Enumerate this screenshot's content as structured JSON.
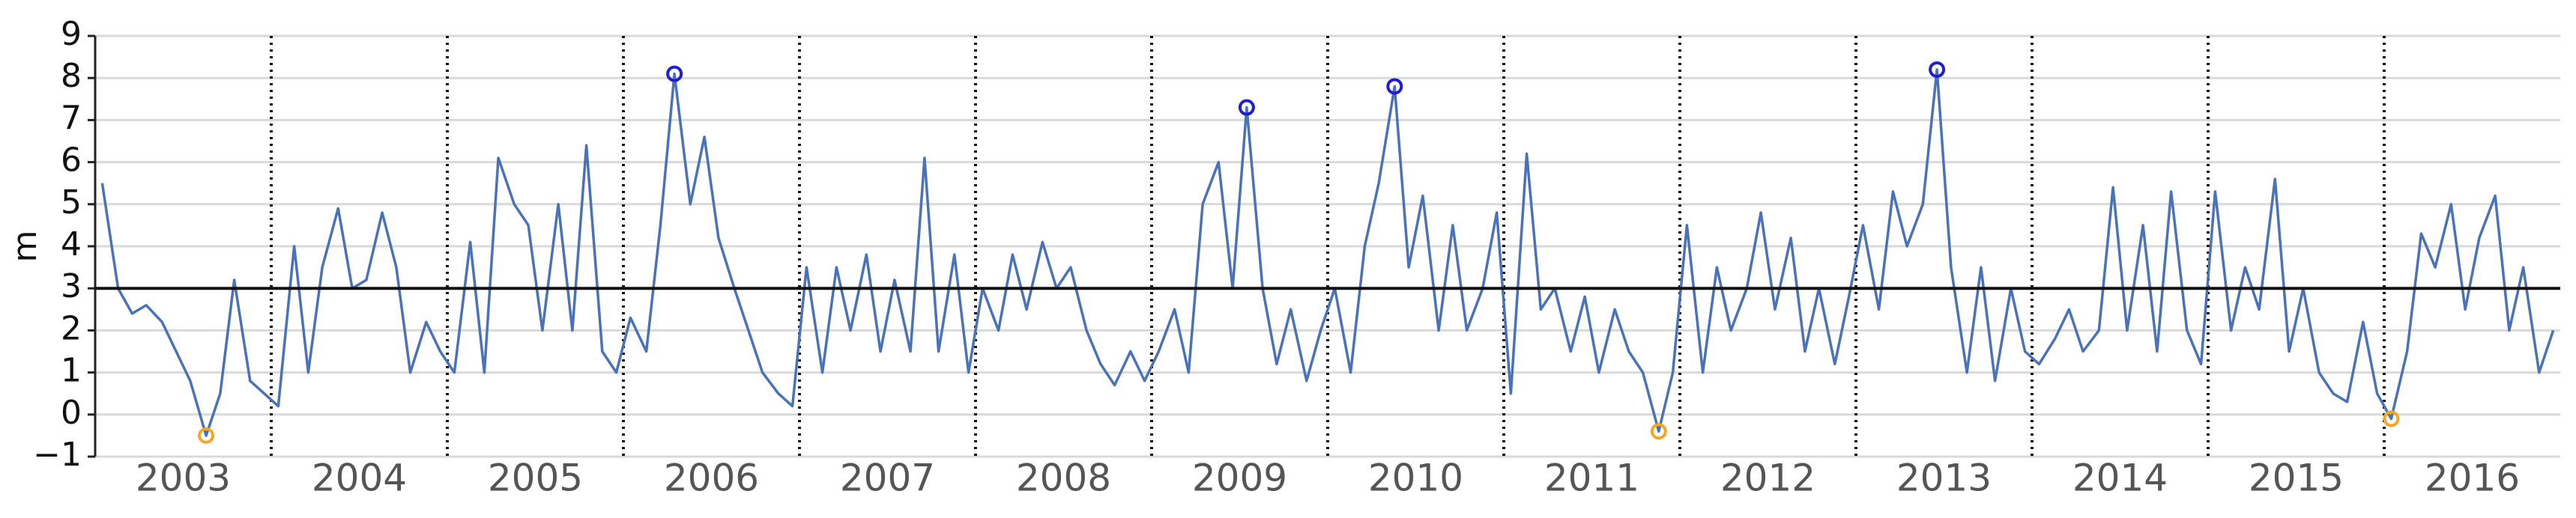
{
  "chart_data": {
    "type": "line",
    "y_label": "m",
    "x": [
      2003.04,
      2003.13,
      2003.21,
      2003.29,
      2003.38,
      2003.46,
      2003.54,
      2003.63,
      2003.71,
      2003.79,
      2003.88,
      2003.96,
      2004.04,
      2004.13,
      2004.21,
      2004.29,
      2004.38,
      2004.46,
      2004.54,
      2004.63,
      2004.71,
      2004.79,
      2004.88,
      2004.96,
      2005.04,
      2005.13,
      2005.21,
      2005.29,
      2005.38,
      2005.46,
      2005.54,
      2005.63,
      2005.71,
      2005.79,
      2005.88,
      2005.96,
      2006.04,
      2006.13,
      2006.21,
      2006.29,
      2006.38,
      2006.46,
      2006.54,
      2006.63,
      2006.71,
      2006.79,
      2006.88,
      2006.96,
      2007.04,
      2007.13,
      2007.21,
      2007.29,
      2007.38,
      2007.46,
      2007.54,
      2007.63,
      2007.71,
      2007.79,
      2007.88,
      2007.96,
      2008.04,
      2008.13,
      2008.21,
      2008.29,
      2008.38,
      2008.46,
      2008.54,
      2008.63,
      2008.71,
      2008.79,
      2008.88,
      2008.96,
      2009.04,
      2009.13,
      2009.21,
      2009.29,
      2009.38,
      2009.46,
      2009.54,
      2009.63,
      2009.71,
      2009.79,
      2009.88,
      2009.96,
      2010.04,
      2010.13,
      2010.21,
      2010.29,
      2010.38,
      2010.46,
      2010.54,
      2010.63,
      2010.71,
      2010.79,
      2010.88,
      2010.96,
      2011.04,
      2011.13,
      2011.21,
      2011.29,
      2011.38,
      2011.46,
      2011.54,
      2011.63,
      2011.71,
      2011.79,
      2011.88,
      2011.96,
      2012.04,
      2012.13,
      2012.21,
      2012.29,
      2012.38,
      2012.46,
      2012.54,
      2012.63,
      2012.71,
      2012.79,
      2012.88,
      2012.96,
      2013.04,
      2013.13,
      2013.21,
      2013.29,
      2013.38,
      2013.46,
      2013.54,
      2013.63,
      2013.71,
      2013.79,
      2013.88,
      2013.96,
      2014.04,
      2014.13,
      2014.21,
      2014.29,
      2014.38,
      2014.46,
      2014.54,
      2014.63,
      2014.71,
      2014.79,
      2014.88,
      2014.96,
      2015.04,
      2015.13,
      2015.21,
      2015.29,
      2015.38,
      2015.46,
      2015.54,
      2015.63,
      2015.71,
      2015.79,
      2015.88,
      2015.96,
      2016.04,
      2016.13,
      2016.21,
      2016.29,
      2016.38,
      2016.46,
      2016.54,
      2016.63,
      2016.71,
      2016.79,
      2016.88,
      2016.96
    ],
    "series": [
      {
        "color": "#4a72b8",
        "values": [
          5.5,
          3.0,
          2.4,
          2.6,
          2.2,
          1.5,
          0.8,
          -0.5,
          0.5,
          3.2,
          0.8,
          0.5,
          0.2,
          4.0,
          1.0,
          3.5,
          4.9,
          3.0,
          3.2,
          4.8,
          3.5,
          1.0,
          2.2,
          1.5,
          1.0,
          4.1,
          1.0,
          6.1,
          5.0,
          4.5,
          2.0,
          5.0,
          2.0,
          6.4,
          1.5,
          1.0,
          2.3,
          1.5,
          4.5,
          8.1,
          5.0,
          6.6,
          4.2,
          3.0,
          2.0,
          1.0,
          0.5,
          0.2,
          3.5,
          1.0,
          3.5,
          2.0,
          3.8,
          1.5,
          3.2,
          1.5,
          6.1,
          1.5,
          3.8,
          1.0,
          3.0,
          2.0,
          3.8,
          2.5,
          4.1,
          3.0,
          3.5,
          2.0,
          1.2,
          0.7,
          1.5,
          0.8,
          1.5,
          2.5,
          1.0,
          5.0,
          6.0,
          3.0,
          7.3,
          3.0,
          1.2,
          2.5,
          0.8,
          2.0,
          3.0,
          1.0,
          4.0,
          5.5,
          7.8,
          3.5,
          5.2,
          2.0,
          4.5,
          2.0,
          3.0,
          4.8,
          0.5,
          6.2,
          2.5,
          3.0,
          1.5,
          2.8,
          1.0,
          2.5,
          1.5,
          1.0,
          -0.4,
          1.0,
          4.5,
          1.0,
          3.5,
          2.0,
          3.0,
          4.8,
          2.5,
          4.2,
          1.5,
          3.0,
          1.2,
          2.8,
          4.5,
          2.5,
          5.3,
          4.0,
          5.0,
          8.2,
          3.5,
          1.0,
          3.5,
          0.8,
          3.0,
          1.5,
          1.2,
          1.8,
          2.5,
          1.5,
          2.0,
          5.4,
          2.0,
          4.5,
          1.5,
          5.3,
          2.0,
          1.2,
          5.3,
          2.0,
          3.5,
          2.5,
          5.6,
          1.5,
          3.0,
          1.0,
          0.5,
          0.3,
          2.2,
          0.5,
          -0.1,
          1.5,
          4.3,
          3.5,
          5.0,
          2.5,
          4.2,
          5.2,
          2.0,
          3.5,
          1.0,
          2.0
        ]
      }
    ],
    "maxima": {
      "color": "#1f1fd0",
      "x": [
        2006.29,
        2009.54,
        2010.38,
        2013.46
      ],
      "values": [
        8.1,
        7.3,
        7.8,
        8.2
      ]
    },
    "minima": {
      "color": "#f5a623",
      "x": [
        2003.63,
        2011.88,
        2016.04
      ],
      "values": [
        -0.5,
        -0.4,
        -0.1
      ]
    },
    "threshold": 3,
    "xlim": [
      2003,
      2017
    ],
    "xticks": [
      {
        "value": 2003.5,
        "label": "2003"
      },
      {
        "value": 2004.5,
        "label": "2004"
      },
      {
        "value": 2005.5,
        "label": "2005"
      },
      {
        "value": 2006.5,
        "label": "2006"
      },
      {
        "value": 2007.5,
        "label": "2007"
      },
      {
        "value": 2008.5,
        "label": "2008"
      },
      {
        "value": 2009.5,
        "label": "2009"
      },
      {
        "value": 2010.5,
        "label": "2010"
      },
      {
        "value": 2011.5,
        "label": "2011"
      },
      {
        "value": 2012.5,
        "label": "2012"
      },
      {
        "value": 2013.5,
        "label": "2013"
      },
      {
        "value": 2014.5,
        "label": "2014"
      },
      {
        "value": 2015.5,
        "label": "2015"
      },
      {
        "value": 2016.5,
        "label": "2016"
      }
    ],
    "xgrid": [
      2004,
      2005,
      2006,
      2007,
      2008,
      2009,
      2010,
      2011,
      2012,
      2013,
      2014,
      2015,
      2016
    ],
    "ylim": [
      -1,
      9
    ],
    "yticks": [
      {
        "value": -1,
        "label": "−1"
      },
      0,
      1,
      2,
      3,
      4,
      5,
      6,
      7,
      8,
      9
    ],
    "grid": true
  }
}
